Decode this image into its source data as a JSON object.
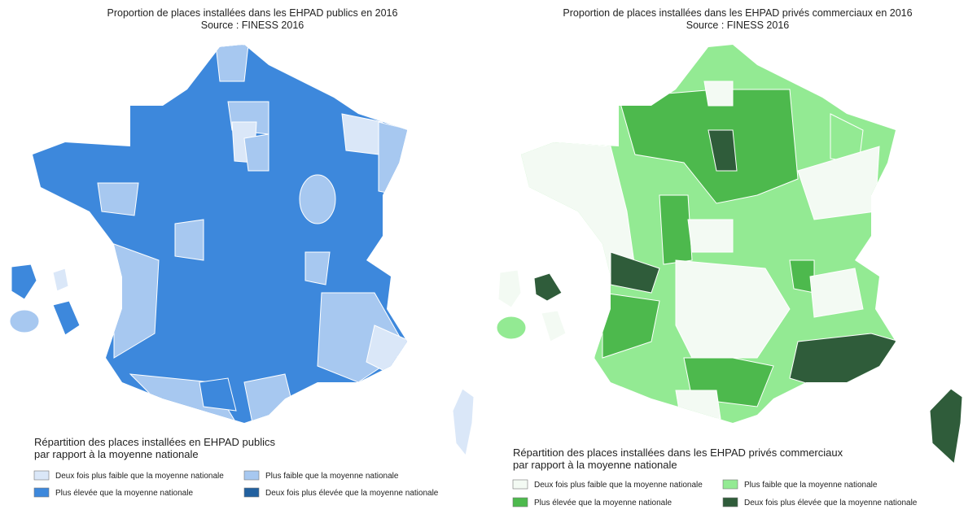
{
  "maps": [
    {
      "title": "Proportion de places installées dans les EHPAD publics en 2016",
      "source": "Source : FINESS 2016",
      "legend": {
        "title": "Répartition des places installées en EHPAD publics",
        "subtitle": "par rapport à la moyenne nationale",
        "items": [
          {
            "label": "Deux fois plus faible que la moyenne nationale",
            "color": "#dae7f8"
          },
          {
            "label": "Plus faible que la moyenne nationale",
            "color": "#a7c8f0"
          },
          {
            "label": "Plus élevée que la moyenne nationale",
            "color": "#3d88dc"
          },
          {
            "label": "Deux fois plus élevée que la moyenne nationale",
            "color": "#21609f"
          }
        ]
      }
    },
    {
      "title": "Proportion de places installées dans les EHPAD privés commerciaux en 2016",
      "source": "Source : FINESS 2016",
      "legend": {
        "title": "Répartition des places installées dans les EHPAD privés commerciaux",
        "subtitle": "par rapport à la moyenne nationale",
        "items": [
          {
            "label": "Deux fois plus faible que la moyenne nationale",
            "color": "#f3faf3"
          },
          {
            "label": "Plus faible que la moyenne nationale",
            "color": "#93ea93"
          },
          {
            "label": "Plus élevée que la moyenne nationale",
            "color": "#4db94d"
          },
          {
            "label": "Deux fois plus élevée que la moyenne nationale",
            "color": "#2f5c3a"
          }
        ]
      }
    }
  ]
}
